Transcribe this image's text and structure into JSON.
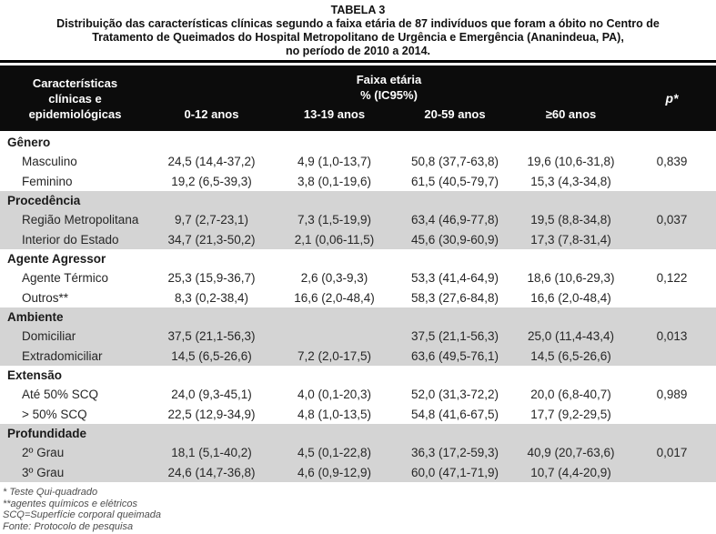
{
  "title": {
    "label": "TABELA 3",
    "description_lines": [
      "Distribuição das características clínicas segundo a faixa etária de 87 indivíduos que foram a óbito no Centro de",
      "Tratamento de Queimados do Hospital Metropolitano de Urgência e Emergência (Ananindeua, PA),",
      "no período de 2010 a 2014."
    ]
  },
  "header": {
    "col1_lines": [
      "Características",
      "clínicas e",
      "epidemiológicas"
    ],
    "group": "Faixa etária",
    "group_sub": "% (IC95%)",
    "age_cols": [
      "0-12 anos",
      "13-19 anos",
      "20-59 anos",
      "≥60 anos"
    ],
    "p_col": "p*"
  },
  "sections": [
    {
      "name": "Gênero",
      "shaded": false,
      "rows": [
        {
          "label": "Masculino",
          "values": [
            "24,5 (14,4-37,2)",
            "4,9 (1,0-13,7)",
            "50,8 (37,7-63,8)",
            "19,6 (10,6-31,8)"
          ],
          "p": "0,839"
        },
        {
          "label": "Feminino",
          "values": [
            "19,2 (6,5-39,3)",
            "3,8 (0,1-19,6)",
            "61,5 (40,5-79,7)",
            "15,3 (4,3-34,8)"
          ],
          "p": ""
        }
      ]
    },
    {
      "name": "Procedência",
      "shaded": true,
      "rows": [
        {
          "label": "Região Metropolitana",
          "values": [
            "9,7 (2,7-23,1)",
            "7,3 (1,5-19,9)",
            "63,4 (46,9-77,8)",
            "19,5 (8,8-34,8)"
          ],
          "p": "0,037"
        },
        {
          "label": "Interior do Estado",
          "values": [
            "34,7 (21,3-50,2)",
            "2,1 (0,06-11,5)",
            "45,6 (30,9-60,9)",
            "17,3 (7,8-31,4)"
          ],
          "p": ""
        }
      ]
    },
    {
      "name": "Agente Agressor",
      "shaded": false,
      "rows": [
        {
          "label": "Agente Térmico",
          "values": [
            "25,3 (15,9-36,7)",
            "2,6 (0,3-9,3)",
            "53,3 (41,4-64,9)",
            "18,6 (10,6-29,3)"
          ],
          "p": "0,122"
        },
        {
          "label": "Outros**",
          "values": [
            "8,3 (0,2-38,4)",
            "16,6 (2,0-48,4)",
            "58,3 (27,6-84,8)",
            "16,6 (2,0-48,4)"
          ],
          "p": ""
        }
      ]
    },
    {
      "name": "Ambiente",
      "shaded": true,
      "rows": [
        {
          "label": "Domiciliar",
          "values": [
            "37,5 (21,1-56,3)",
            "",
            "37,5 (21,1-56,3)",
            "25,0 (11,4-43,4)"
          ],
          "p": "0,013"
        },
        {
          "label": "Extradomiciliar",
          "values": [
            "14,5 (6,5-26,6)",
            "7,2 (2,0-17,5)",
            "63,6 (49,5-76,1)",
            "14,5 (6,5-26,6)"
          ],
          "p": ""
        }
      ]
    },
    {
      "name": "Extensão",
      "shaded": false,
      "rows": [
        {
          "label": "Até 50% SCQ",
          "values": [
            "24,0 (9,3-45,1)",
            "4,0 (0,1-20,3)",
            "52,0 (31,3-72,2)",
            "20,0 (6,8-40,7)"
          ],
          "p": "0,989"
        },
        {
          "label": "> 50% SCQ",
          "values": [
            "22,5 (12,9-34,9)",
            "4,8 (1,0-13,5)",
            "54,8 (41,6-67,5)",
            "17,7 (9,2-29,5)"
          ],
          "p": ""
        }
      ]
    },
    {
      "name": "Profundidade",
      "shaded": true,
      "rows": [
        {
          "label": "2º Grau",
          "values": [
            "18,1 (5,1-40,2)",
            "4,5 (0,1-22,8)",
            "36,3 (17,2-59,3)",
            "40,9 (20,7-63,6)"
          ],
          "p": "0,017"
        },
        {
          "label": "3º Grau",
          "values": [
            "24,6 (14,7-36,8)",
            "4,6 (0,9-12,9)",
            "60,0 (47,1-71,9)",
            "10,7 (4,4-20,9)"
          ],
          "p": ""
        }
      ]
    }
  ],
  "footnotes": [
    "* Teste Qui-quadrado",
    "**agentes químicos e elétricos",
    "SCQ=Superfície corporal queimada",
    "Fonte: Protocolo de pesquisa"
  ],
  "colors": {
    "header_bg": "#0c0c0c",
    "header_text": "#ffffff",
    "shaded_band": "#d4d4d4",
    "body_text": "#262626",
    "footnote_text": "#4d4d4d"
  }
}
